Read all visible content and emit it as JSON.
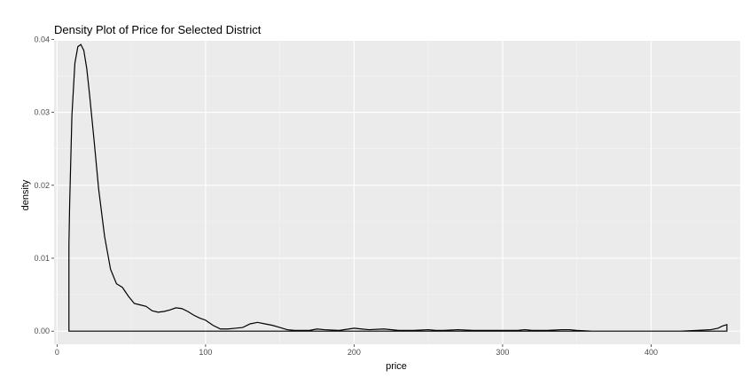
{
  "chart_data": {
    "type": "area",
    "title": "Density Plot of Price for Selected District",
    "xlabel": "price",
    "ylabel": "density",
    "xlim": [
      -2,
      460
    ],
    "ylim": [
      -0.0018,
      0.0398
    ],
    "x_ticks": [
      0,
      100,
      200,
      300,
      400
    ],
    "y_ticks": [
      0.0,
      0.01,
      0.02,
      0.03,
      0.04
    ],
    "x_tick_labels": [
      "0",
      "100",
      "200",
      "300",
      "400"
    ],
    "y_tick_labels": [
      "0.00",
      "0.01",
      "0.02",
      "0.03",
      "0.04"
    ],
    "grid": true,
    "legend": "none",
    "fill": "none",
    "line_color": "#000000",
    "panel_background": "#ebebeb",
    "series": [
      {
        "x": [
          8,
          8.5,
          10,
          12,
          14,
          16,
          18,
          20,
          22,
          25,
          28,
          32,
          36,
          40,
          44,
          48,
          52,
          56,
          60,
          64,
          68,
          72,
          76,
          80,
          84,
          88,
          92,
          96,
          100,
          105,
          110,
          115,
          120,
          125,
          130,
          135,
          140,
          145,
          150,
          155,
          160,
          170,
          175,
          180,
          190,
          200,
          205,
          210,
          220,
          230,
          240,
          250,
          255,
          260,
          270,
          280,
          290,
          300,
          310,
          315,
          320,
          330,
          340,
          345,
          350,
          360,
          380,
          400,
          420,
          440,
          445,
          448,
          451,
          451,
          8
        ],
        "y": [
          0.0118,
          0.0175,
          0.0295,
          0.0367,
          0.039,
          0.0393,
          0.0385,
          0.036,
          0.0322,
          0.026,
          0.0195,
          0.013,
          0.0085,
          0.0065,
          0.006,
          0.0048,
          0.0038,
          0.0036,
          0.0034,
          0.0028,
          0.0026,
          0.0027,
          0.0029,
          0.0032,
          0.0031,
          0.0027,
          0.0022,
          0.0018,
          0.0015,
          0.0008,
          0.0003,
          0.0003,
          0.0004,
          0.0005,
          0.001,
          0.0012,
          0.001,
          0.0008,
          0.0005,
          0.0002,
          0.0001,
          0.0001,
          0.0003,
          0.0002,
          0.0001,
          0.0004,
          0.0003,
          0.0002,
          0.0003,
          0.0001,
          0.0001,
          0.0002,
          0.0001,
          0.0001,
          0.0002,
          0.0001,
          0.0001,
          0.0001,
          0.0001,
          0.0002,
          0.0001,
          0.0001,
          0.0002,
          0.0002,
          0.0001,
          0.0,
          0.0,
          0.0,
          0.0,
          0.0002,
          0.0004,
          0.0007,
          0.0009,
          0.0,
          0.0
        ]
      }
    ]
  }
}
